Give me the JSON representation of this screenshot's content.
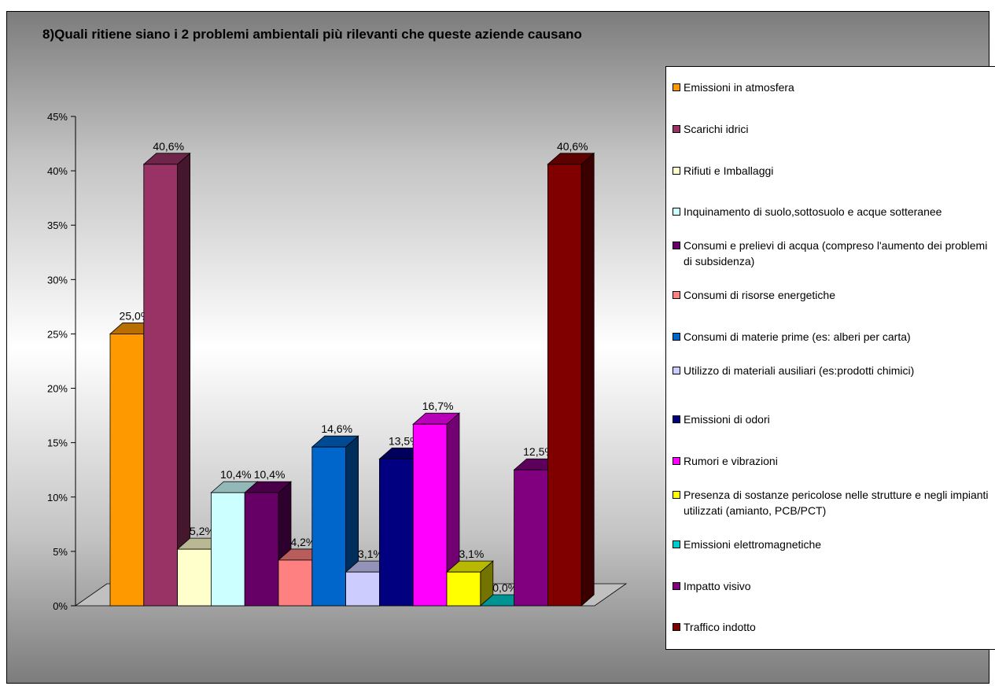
{
  "chart_data": {
    "type": "bar",
    "title": "8)Quali ritiene siano i 2 problemi ambientali più rilevanti che queste aziende causano",
    "ylim": [
      0,
      45
    ],
    "yticks": [
      "0%",
      "5%",
      "10%",
      "15%",
      "20%",
      "25%",
      "30%",
      "35%",
      "40%",
      "45%"
    ],
    "legend_position": "right",
    "series": [
      {
        "name": "Emissioni in atmosfera",
        "value": 25.0,
        "label": "25,0%",
        "color": "#FF9900"
      },
      {
        "name": "Scarichi idrici",
        "value": 40.6,
        "label": "40,6%",
        "color": "#993366"
      },
      {
        "name": "Rifiuti e Imballaggi",
        "value": 5.2,
        "label": "5,2%",
        "color": "#FFFFCC"
      },
      {
        "name": "Inquinamento di suolo,sottosuolo e acque sotteranee",
        "value": 10.4,
        "label": "10,4%",
        "color": "#CCFFFF"
      },
      {
        "name": "Consumi e prelievi di acqua (compreso l'aumento dei problemi di subsidenza)",
        "value": 10.4,
        "label": "10,4%",
        "color": "#660066"
      },
      {
        "name": "Consumi di risorse energetiche",
        "value": 4.2,
        "label": "4,2%",
        "color": "#FF8080"
      },
      {
        "name": "Consumi di materie prime (es: alberi per carta)",
        "value": 14.6,
        "label": "14,6%",
        "color": "#0066CC"
      },
      {
        "name": "Utilizzo di materiali ausiliari (es:prodotti chimici)",
        "value": 3.1,
        "label": "3,1%",
        "color": "#CCCCFF"
      },
      {
        "name": "Emissioni di odori",
        "value": 13.5,
        "label": "13,5%",
        "color": "#000080"
      },
      {
        "name": "Rumori e vibrazioni",
        "value": 16.7,
        "label": "16,7%",
        "color": "#FF00FF"
      },
      {
        "name": "Presenza di sostanze pericolose nelle strutture e negli impianti utilizzati (amianto, PCB/PCT)",
        "value": 3.1,
        "label": "3,1%",
        "color": "#FFFF00"
      },
      {
        "name": "Emissioni elettromagnetiche",
        "value": 0.0,
        "label": "0,0%",
        "color": "#00CCCC"
      },
      {
        "name": "Impatto visivo",
        "value": 12.5,
        "label": "12,5%",
        "color": "#800080"
      },
      {
        "name": "Traffico indotto",
        "value": 40.6,
        "label": "40,6%",
        "color": "#800000"
      }
    ]
  }
}
